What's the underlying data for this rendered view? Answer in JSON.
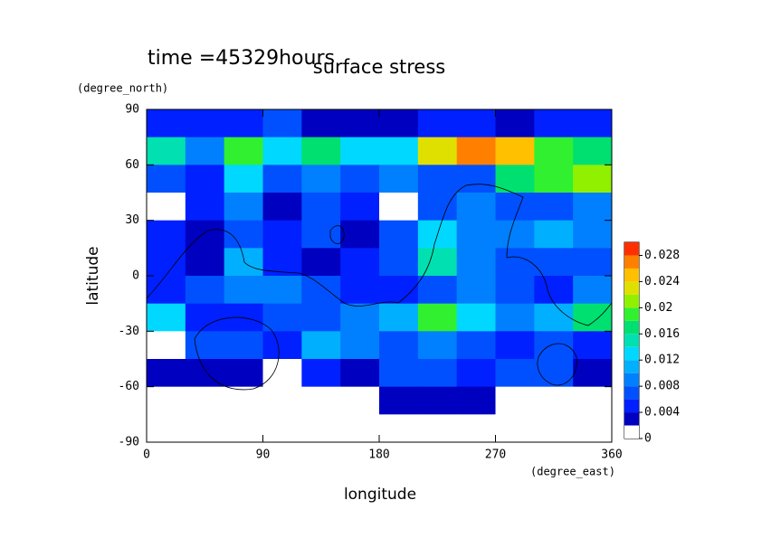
{
  "chart_data": {
    "type": "heatmap",
    "title": "surface stress",
    "subtitle": "time =45329hours",
    "x_label": "longitude",
    "x_unit": "(degree_east)",
    "y_label": "latitude",
    "y_unit": "(degree_north)",
    "xlim": [
      0,
      360
    ],
    "xticks": [
      0,
      90,
      180,
      270,
      360
    ],
    "ylim": [
      -90,
      90
    ],
    "yticks": [
      -90,
      -60,
      -30,
      0,
      30,
      60,
      90
    ],
    "x": [
      15,
      45,
      75,
      105,
      135,
      165,
      195,
      225,
      255,
      285,
      315,
      345
    ],
    "y": [
      82.5,
      67.5,
      52.5,
      37.5,
      22.5,
      7.5,
      -7.5,
      -22.5,
      -37.5,
      -52.5,
      -67.5,
      -82.5
    ],
    "z": [
      [
        0.005,
        0.005,
        0.004,
        0.006,
        0.003,
        0.002,
        0.003,
        0.004,
        0.004,
        0.003,
        0.004,
        0.005
      ],
      [
        0.014,
        0.008,
        0.018,
        0.012,
        0.016,
        0.012,
        0.012,
        0.022,
        0.026,
        0.024,
        0.018,
        0.016
      ],
      [
        0.006,
        0.004,
        0.012,
        0.006,
        0.008,
        0.006,
        0.008,
        0.006,
        0.006,
        0.016,
        0.018,
        0.02
      ],
      [
        0.001,
        0.004,
        0.008,
        0.002,
        0.006,
        0.004,
        0.001,
        0.006,
        0.008,
        0.006,
        0.006,
        0.008
      ],
      [
        0.004,
        0.003,
        0.006,
        0.004,
        0.006,
        0.003,
        0.006,
        0.012,
        0.008,
        0.008,
        0.01,
        0.008
      ],
      [
        0.005,
        0.002,
        0.01,
        0.004,
        0.002,
        0.004,
        0.006,
        0.014,
        0.008,
        0.006,
        0.006,
        0.006
      ],
      [
        0.004,
        0.006,
        0.008,
        0.008,
        0.006,
        0.004,
        0.004,
        0.006,
        0.008,
        0.006,
        0.004,
        0.008
      ],
      [
        0.012,
        0.004,
        0.004,
        0.006,
        0.006,
        0.008,
        0.01,
        0.018,
        0.012,
        0.008,
        0.01,
        0.016
      ],
      [
        0.001,
        0.006,
        0.006,
        0.004,
        0.01,
        0.008,
        0.006,
        0.008,
        0.006,
        0.004,
        0.006,
        0.004
      ],
      [
        0.002,
        0.003,
        0.003,
        0.001,
        0.004,
        0.003,
        0.006,
        0.006,
        0.004,
        0.006,
        0.006,
        0.003
      ],
      [
        0.001,
        0.001,
        0.001,
        0.001,
        0.001,
        0.001,
        0.002,
        0.003,
        0.002,
        0.001,
        0.001,
        0.001
      ],
      [
        0,
        0,
        0,
        0,
        0,
        0,
        0,
        0,
        0,
        0,
        0,
        0
      ]
    ],
    "levels": [
      0,
      0.002,
      0.004,
      0.006,
      0.008,
      0.01,
      0.012,
      0.014,
      0.016,
      0.018,
      0.02,
      0.022,
      0.024,
      0.026,
      0.028,
      0.03
    ],
    "colors": [
      "#ffffff",
      "#0000c0",
      "#0020ff",
      "#0050ff",
      "#0080ff",
      "#00b0ff",
      "#00d8ff",
      "#00e0b0",
      "#00e070",
      "#30f030",
      "#90f000",
      "#e0e000",
      "#ffc000",
      "#ff8000",
      "#ff3000"
    ],
    "colorbar_ticks": [
      0,
      0.004,
      0.008,
      0.012,
      0.016,
      0.02,
      0.024,
      0.028
    ]
  }
}
